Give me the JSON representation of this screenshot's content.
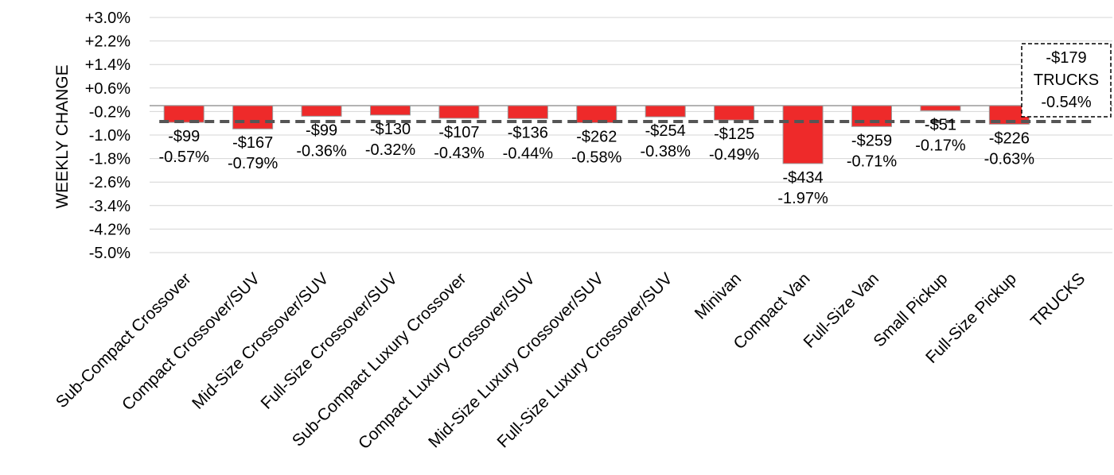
{
  "chart_data": {
    "type": "bar",
    "title": "",
    "xlabel": "",
    "ylabel": "WEEKLY CHANGE",
    "ylim": [
      -5.0,
      3.0
    ],
    "yticks": [
      "+3.0%",
      "+2.2%",
      "+1.4%",
      "+0.6%",
      "-0.2%",
      "-1.0%",
      "-1.8%",
      "-2.6%",
      "-3.4%",
      "-4.2%",
      "-5.0%"
    ],
    "grid": true,
    "categories": [
      "Sub-Compact Crossover",
      "Compact Crossover/SUV",
      "Mid-Size Crossover/SUV",
      "Full-Size Crossover/SUV",
      "Sub-Compact Luxury Crossover",
      "Compact Luxury Crossover/SUV",
      "Mid-Size Luxury Crossover/SUV",
      "Full-Size Luxury Crossover/SUV",
      "Minivan",
      "Compact Van",
      "Full-Size Van",
      "Small Pickup",
      "Full-Size Pickup",
      "TRUCKS"
    ],
    "values": [
      -0.57,
      -0.79,
      -0.36,
      -0.32,
      -0.43,
      -0.44,
      -0.58,
      -0.38,
      -0.49,
      -1.97,
      -0.71,
      -0.17,
      -0.63,
      null
    ],
    "dollar_labels": [
      "-$99",
      "-$167",
      "-$99",
      "-$130",
      "-$107",
      "-$136",
      "-$262",
      "-$254",
      "-$125",
      "-$434",
      "-$259",
      "-$51",
      "-$226",
      ""
    ],
    "pct_labels": [
      "-0.57%",
      "-0.79%",
      "-0.36%",
      "-0.32%",
      "-0.43%",
      "-0.44%",
      "-0.58%",
      "-0.38%",
      "-0.49%",
      "-1.97%",
      "-0.71%",
      "-0.17%",
      "-0.63%",
      ""
    ],
    "reference_line": {
      "value": -0.54,
      "style": "dashed"
    },
    "callout": {
      "lines": [
        "-$179",
        "TRUCKS",
        "-0.54%"
      ]
    },
    "bar_color": "#ee2a2a",
    "bar_stroke": "#9a9a9a",
    "reference_color": "#555555"
  }
}
